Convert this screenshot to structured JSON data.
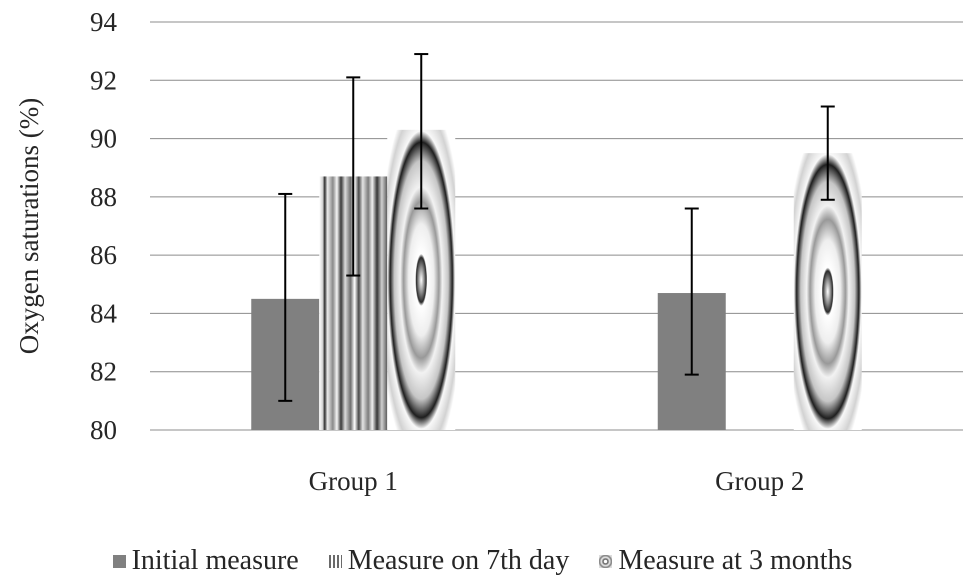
{
  "chart_data": {
    "type": "bar",
    "title": "",
    "xlabel": "",
    "ylabel": "Oxygen saturations (%)",
    "ylim": [
      80,
      94
    ],
    "yticks": [
      80,
      82,
      84,
      86,
      88,
      90,
      92,
      94
    ],
    "categories": [
      "Group 1",
      "Group 2"
    ],
    "grid": true,
    "legend_position": "bottom",
    "series": [
      {
        "name": "Initial measure",
        "values": [
          84.5,
          84.7
        ],
        "err_low": [
          81.0,
          81.9
        ],
        "err_high": [
          88.1,
          87.6
        ],
        "color": "#808080",
        "pattern": "solid"
      },
      {
        "name": "Measure on 7th day",
        "values": [
          88.7,
          null
        ],
        "err_low": [
          85.3,
          null
        ],
        "err_high": [
          92.1,
          null
        ],
        "color": "#a0a0a0",
        "pattern": "vertical-stripes"
      },
      {
        "name": "Measure at 3 months",
        "values": [
          90.3,
          89.5
        ],
        "err_low": [
          87.6,
          87.9
        ],
        "err_high": [
          92.9,
          91.1
        ],
        "color": "#c8c8c8",
        "pattern": "concentric-rings"
      }
    ]
  }
}
